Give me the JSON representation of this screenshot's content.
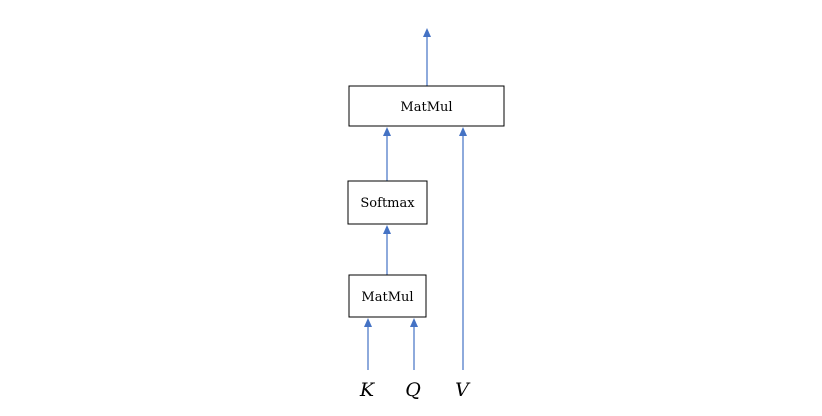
{
  "diagram": {
    "nodes": {
      "top_matmul": {
        "label": "MatMul"
      },
      "softmax": {
        "label": "Softmax"
      },
      "bottom_matmul": {
        "label": "MatMul"
      }
    },
    "inputs": {
      "k": "K",
      "q": "Q",
      "v": "V"
    },
    "colors": {
      "arrow": "#4472c4",
      "box_border": "#000000",
      "background": "#ffffff"
    }
  }
}
